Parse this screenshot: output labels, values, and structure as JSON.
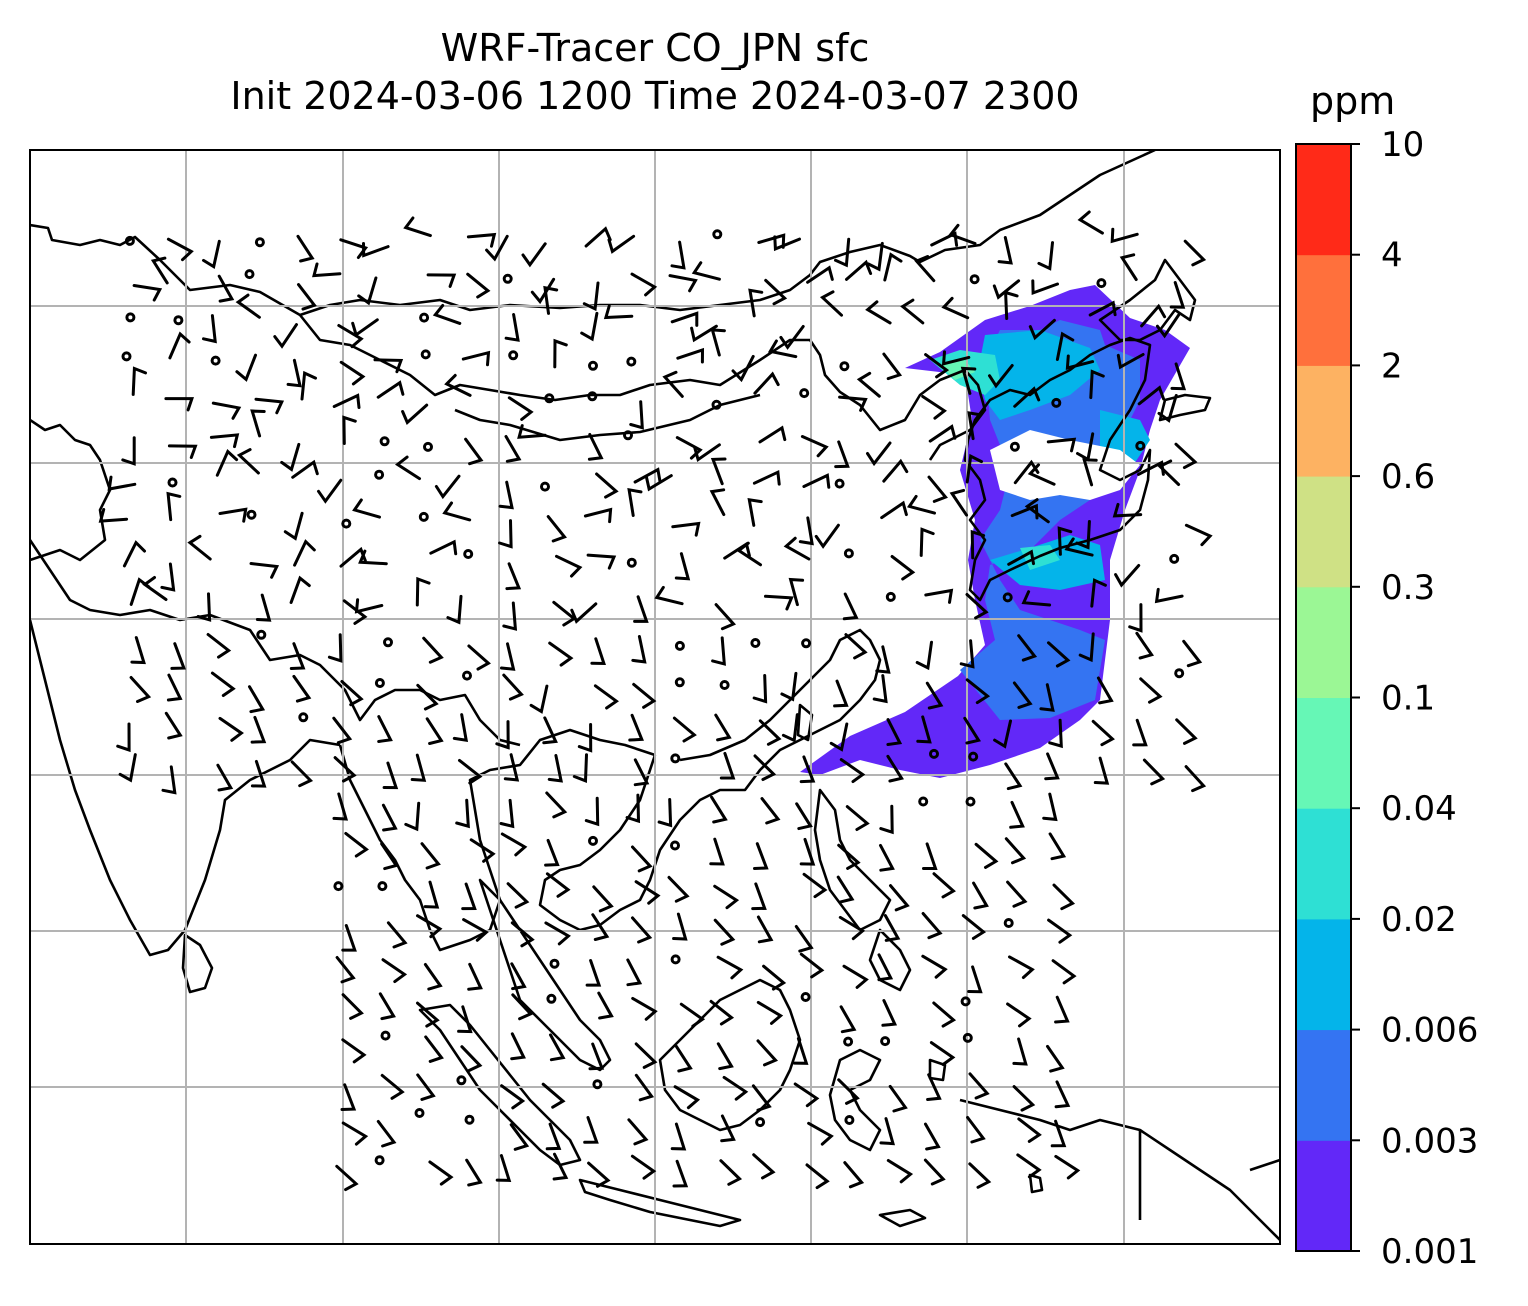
{
  "title": {
    "line1": "WRF-Tracer CO_JPN sfc",
    "line2": "Init 2024-03-06 1200 Time 2024-03-07 2300"
  },
  "colorbar": {
    "unit": "ppm",
    "levels": [
      "0.001",
      "0.003",
      "0.006",
      "0.02",
      "0.04",
      "0.1",
      "0.3",
      "0.6",
      "2",
      "4",
      "10"
    ],
    "colors": [
      "#6228f8",
      "#3474f2",
      "#04b4ea",
      "#2ee0d4",
      "#66f7b6",
      "#9bf795",
      "#cfe185",
      "#fdb262",
      "#ff703c",
      "#ff2a18"
    ]
  },
  "chart_data": {
    "type": "heatmap",
    "description_field": "CO tracer concentration (ppm) with wind barbs",
    "title": "WRF-Tracer CO_JPN sfc",
    "subtitle": "Init 2024-03-06 1200 Time 2024-03-07 2300",
    "colorbar_label": "ppm",
    "colorbar_levels": [
      0.001,
      0.003,
      0.006,
      0.02,
      0.04,
      0.1,
      0.3,
      0.6,
      2,
      4,
      10
    ],
    "grid": true,
    "legend_position": "right"
  }
}
